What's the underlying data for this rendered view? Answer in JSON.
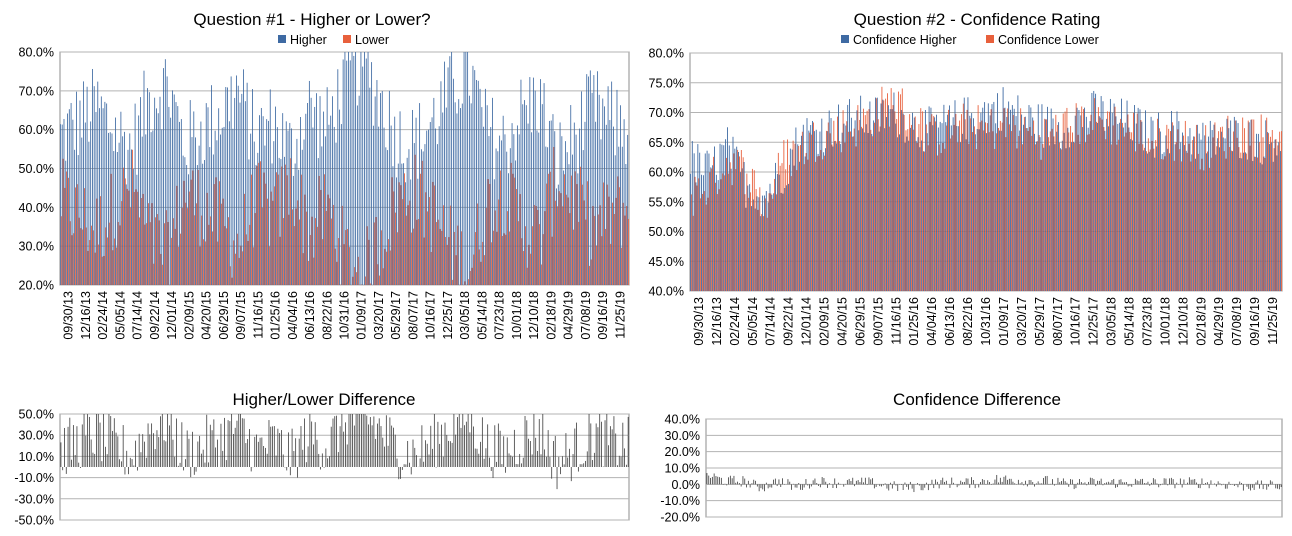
{
  "colors": {
    "higher": "#3e6aa3",
    "lower": "#e8603c",
    "diff": "#3c3c3c",
    "grid": "#b3b3b3",
    "axis": "#8c8c8c"
  },
  "chart_data": [
    {
      "id": "q1",
      "type": "bar",
      "title": "Question #1 - Higher or Lower?",
      "ylim": [
        0.2,
        0.8
      ],
      "yticks": [
        "80.0%",
        "70.0%",
        "60.0%",
        "50.0%",
        "40.0%",
        "30.0%",
        "20.0%"
      ],
      "xticks": [
        "09/30/13",
        "12/16/13",
        "02/24/14",
        "05/05/14",
        "07/14/14",
        "09/22/14",
        "12/01/14",
        "02/09/15",
        "04/20/15",
        "06/29/15",
        "09/07/15",
        "11/16/15",
        "01/25/16",
        "04/04/16",
        "06/13/16",
        "08/22/16",
        "10/31/16",
        "01/09/17",
        "03/20/17",
        "05/29/17",
        "08/07/17",
        "10/16/17",
        "12/25/17",
        "03/05/18",
        "05/14/18",
        "07/23/18",
        "10/01/18",
        "12/10/18",
        "02/18/19",
        "04/29/19",
        "07/08/19",
        "09/16/19",
        "11/25/19"
      ],
      "series": [
        {
          "name": "Higher",
          "values": [
            0.58,
            0.62,
            0.66,
            0.6,
            0.55,
            0.68,
            0.72,
            0.56,
            0.6,
            0.64,
            0.7,
            0.58,
            0.62,
            0.54,
            0.66,
            0.6,
            0.72,
            0.78,
            0.68,
            0.58,
            0.56,
            0.62,
            0.7,
            0.76,
            0.6,
            0.56,
            0.64,
            0.68,
            0.52,
            0.58,
            0.66,
            0.62,
            0.6
          ]
        },
        {
          "name": "Lower",
          "values": [
            0.42,
            0.38,
            0.34,
            0.4,
            0.45,
            0.32,
            0.28,
            0.44,
            0.4,
            0.36,
            0.3,
            0.42,
            0.38,
            0.46,
            0.34,
            0.4,
            0.28,
            0.22,
            0.32,
            0.42,
            0.44,
            0.38,
            0.3,
            0.24,
            0.4,
            0.44,
            0.36,
            0.32,
            0.48,
            0.42,
            0.34,
            0.38,
            0.4
          ]
        }
      ]
    },
    {
      "id": "q2",
      "type": "bar",
      "title": "Question #2 - Confidence Rating",
      "ylim": [
        0.4,
        0.8
      ],
      "yticks": [
        "80.0%",
        "75.0%",
        "70.0%",
        "65.0%",
        "60.0%",
        "55.0%",
        "50.0%",
        "45.0%",
        "40.0%"
      ],
      "xticks": [
        "09/30/13",
        "12/16/13",
        "02/24/14",
        "05/05/14",
        "07/14/14",
        "09/22/14",
        "12/01/14",
        "02/09/15",
        "04/20/15",
        "06/29/15",
        "09/07/15",
        "11/16/15",
        "01/25/16",
        "04/04/16",
        "06/13/16",
        "08/22/16",
        "10/31/16",
        "01/09/17",
        "03/20/17",
        "05/29/17",
        "08/07/17",
        "10/16/17",
        "12/25/17",
        "03/05/18",
        "05/14/18",
        "07/23/18",
        "10/01/18",
        "12/10/18",
        "02/18/19",
        "04/29/19",
        "07/08/19",
        "09/16/19",
        "11/25/19"
      ],
      "series": [
        {
          "name": "Confidence Higher",
          "values": [
            0.62,
            0.6,
            0.64,
            0.58,
            0.56,
            0.6,
            0.66,
            0.67,
            0.68,
            0.69,
            0.69,
            0.7,
            0.68,
            0.67,
            0.68,
            0.69,
            0.7,
            0.71,
            0.69,
            0.68,
            0.67,
            0.69,
            0.7,
            0.69,
            0.68,
            0.66,
            0.67,
            0.66,
            0.65,
            0.66,
            0.66,
            0.65,
            0.66
          ]
        },
        {
          "name": "Confidence Lower",
          "values": [
            0.56,
            0.58,
            0.62,
            0.6,
            0.54,
            0.62,
            0.64,
            0.66,
            0.67,
            0.68,
            0.7,
            0.72,
            0.69,
            0.66,
            0.67,
            0.68,
            0.67,
            0.68,
            0.67,
            0.66,
            0.67,
            0.68,
            0.69,
            0.68,
            0.67,
            0.65,
            0.66,
            0.65,
            0.64,
            0.66,
            0.67,
            0.66,
            0.67
          ]
        }
      ]
    },
    {
      "id": "d1",
      "type": "bar",
      "title": "Higher/Lower Difference",
      "ylim": [
        -0.5,
        0.5
      ],
      "yticks": [
        "50.0%",
        "30.0%",
        "10.0%",
        "-10.0%",
        "-30.0%",
        "-50.0%"
      ],
      "series": [
        {
          "name": "",
          "values": [
            0.16,
            0.24,
            0.32,
            0.2,
            0.1,
            0.36,
            0.44,
            0.12,
            0.2,
            0.28,
            0.4,
            0.16,
            0.24,
            0.08,
            0.32,
            0.2,
            0.44,
            0.5,
            0.36,
            0.16,
            0.12,
            0.24,
            0.4,
            0.5,
            0.2,
            0.12,
            0.28,
            0.36,
            0.04,
            0.16,
            0.32,
            0.24,
            0.2
          ]
        }
      ]
    },
    {
      "id": "d2",
      "type": "bar",
      "title": "Confidence Difference",
      "ylim": [
        -0.2,
        0.4
      ],
      "yticks": [
        "40.0%",
        "30.0%",
        "20.0%",
        "10.0%",
        "0.0%",
        "-10.0%",
        "-20.0%"
      ],
      "series": [
        {
          "name": "",
          "values": [
            0.06,
            0.02,
            0.02,
            -0.02,
            0.02,
            -0.02,
            0.02,
            0.01,
            0.01,
            0.01,
            -0.01,
            -0.02,
            -0.01,
            0.01,
            0.01,
            0.01,
            0.03,
            0.03,
            0.02,
            0.02,
            0.0,
            0.01,
            0.01,
            0.01,
            0.01,
            0.01,
            0.01,
            0.01,
            0.01,
            0.0,
            -0.01,
            -0.01,
            -0.01
          ]
        }
      ]
    }
  ]
}
